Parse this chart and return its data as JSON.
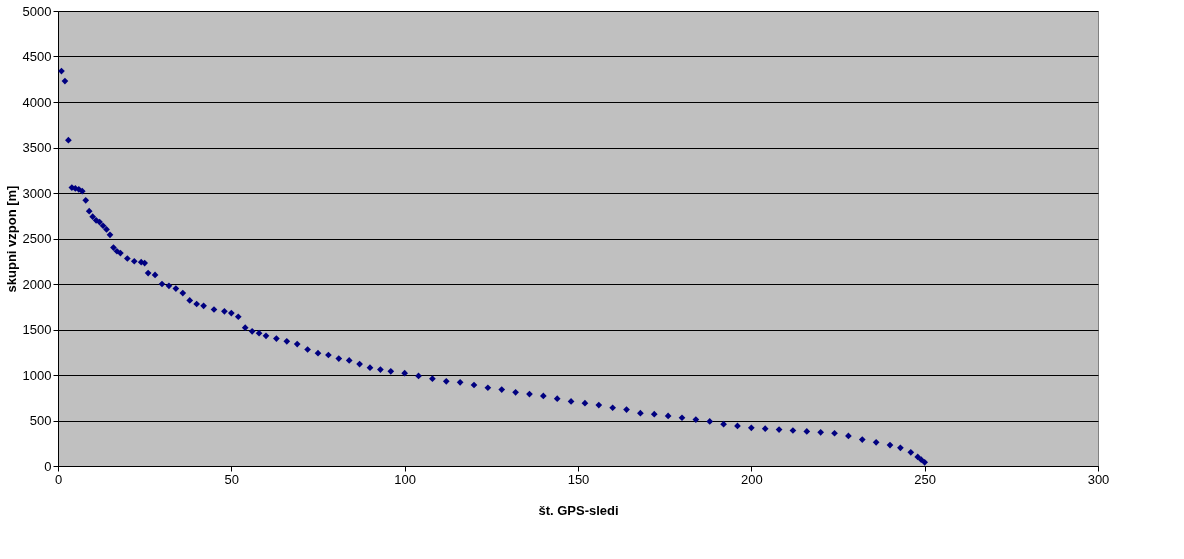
{
  "chart_data": {
    "type": "scatter",
    "xlabel": "št. GPS-sledi",
    "ylabel": "skupni vzpon [m]",
    "x": [
      1,
      2,
      3,
      4,
      5,
      6,
      7,
      8,
      9,
      10,
      11,
      12,
      13,
      14,
      15,
      16,
      17,
      18,
      20,
      22,
      24,
      25,
      26,
      28,
      30,
      32,
      34,
      36,
      38,
      40,
      42,
      45,
      48,
      50,
      52,
      54,
      56,
      58,
      60,
      63,
      66,
      69,
      72,
      75,
      78,
      81,
      84,
      87,
      90,
      93,
      96,
      100,
      104,
      108,
      112,
      116,
      120,
      124,
      128,
      132,
      136,
      140,
      144,
      148,
      152,
      156,
      160,
      164,
      168,
      172,
      176,
      180,
      184,
      188,
      192,
      196,
      200,
      204,
      208,
      212,
      216,
      220,
      224,
      228,
      232,
      236,
      240,
      243,
      246,
      248,
      249,
      250
    ],
    "series": [
      {
        "color": "#000080",
        "values": [
          4340,
          4230,
          3580,
          3060,
          3050,
          3040,
          3020,
          2920,
          2800,
          2740,
          2700,
          2680,
          2640,
          2600,
          2540,
          2400,
          2360,
          2340,
          2280,
          2250,
          2240,
          2230,
          2120,
          2100,
          2000,
          1980,
          1950,
          1900,
          1820,
          1780,
          1760,
          1720,
          1700,
          1680,
          1640,
          1520,
          1480,
          1460,
          1430,
          1400,
          1370,
          1340,
          1280,
          1240,
          1220,
          1180,
          1160,
          1120,
          1080,
          1060,
          1040,
          1020,
          990,
          960,
          930,
          920,
          890,
          860,
          840,
          810,
          790,
          770,
          740,
          710,
          690,
          670,
          640,
          620,
          580,
          570,
          550,
          530,
          510,
          490,
          460,
          440,
          420,
          410,
          400,
          390,
          380,
          370,
          360,
          330,
          290,
          260,
          230,
          200,
          150,
          100,
          70,
          40
        ]
      }
    ],
    "xlim": [
      0,
      300
    ],
    "xticks": [
      0,
      50,
      100,
      150,
      200,
      250,
      300
    ],
    "ylim": [
      0,
      5000
    ],
    "yticks": [
      0,
      500,
      1000,
      1500,
      2000,
      2500,
      3000,
      3500,
      4000,
      4500,
      5000
    ],
    "grid": "y",
    "marker": "diamond",
    "legend": false
  }
}
